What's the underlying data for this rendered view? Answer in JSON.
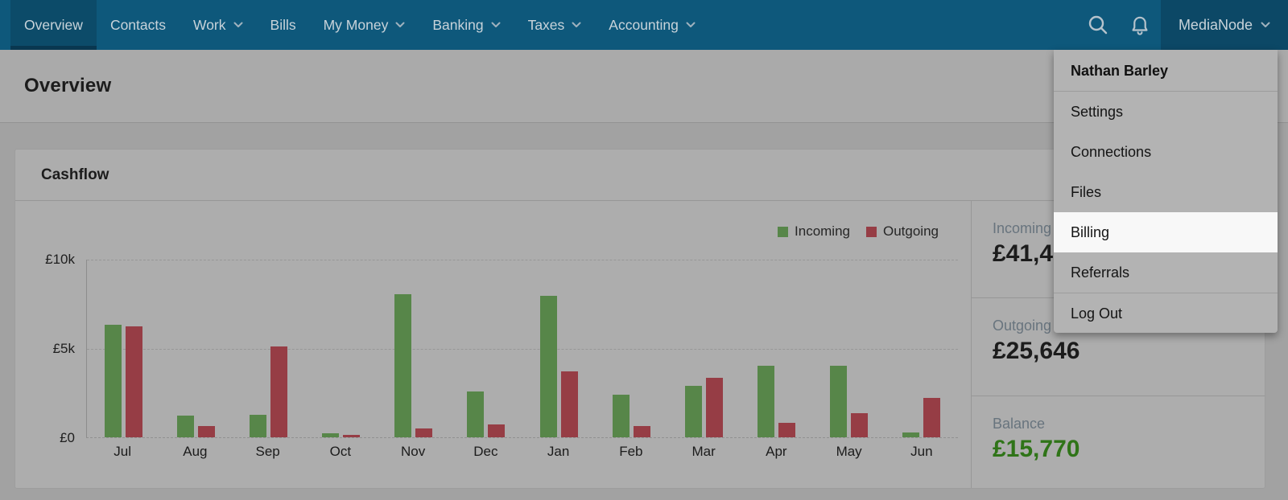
{
  "nav": {
    "items": [
      {
        "label": "Overview",
        "active": true,
        "has_dropdown": false
      },
      {
        "label": "Contacts",
        "active": false,
        "has_dropdown": false
      },
      {
        "label": "Work",
        "active": false,
        "has_dropdown": true
      },
      {
        "label": "Bills",
        "active": false,
        "has_dropdown": false
      },
      {
        "label": "My Money",
        "active": false,
        "has_dropdown": true
      },
      {
        "label": "Banking",
        "active": false,
        "has_dropdown": true
      },
      {
        "label": "Taxes",
        "active": false,
        "has_dropdown": true
      },
      {
        "label": "Accounting",
        "active": false,
        "has_dropdown": true
      }
    ],
    "icons": [
      "search-icon",
      "bell-icon"
    ],
    "account_label": "MediaNode"
  },
  "page": {
    "title": "Overview"
  },
  "card": {
    "title": "Cashflow"
  },
  "summary": {
    "incoming_label": "Incoming",
    "incoming_value": "£41,416",
    "outgoing_label": "Outgoing",
    "outgoing_value": "£25,646",
    "balance_label": "Balance",
    "balance_value": "£15,770"
  },
  "user_menu": {
    "user_name": "Nathan Barley",
    "items": [
      {
        "label": "Settings",
        "highlighted": false,
        "divider_before": false
      },
      {
        "label": "Connections",
        "highlighted": false,
        "divider_before": false
      },
      {
        "label": "Files",
        "highlighted": false,
        "divider_before": false
      },
      {
        "label": "Billing",
        "highlighted": true,
        "divider_before": false
      },
      {
        "label": "Referrals",
        "highlighted": false,
        "divider_before": false
      },
      {
        "label": "Log Out",
        "highlighted": false,
        "divider_before": true
      }
    ]
  },
  "chart_data": {
    "type": "bar",
    "title": "Cashflow",
    "categories": [
      "Jul",
      "Aug",
      "Sep",
      "Oct",
      "Nov",
      "Dec",
      "Jan",
      "Feb",
      "Mar",
      "Apr",
      "May",
      "Jun"
    ],
    "series": [
      {
        "name": "Incoming",
        "color": "#578649",
        "values": [
          6300,
          1200,
          1250,
          220,
          8000,
          2550,
          7950,
          2400,
          2900,
          4000,
          4000,
          270
        ]
      },
      {
        "name": "Outgoing",
        "color": "#963D45",
        "values": [
          6200,
          650,
          5100,
          120,
          500,
          700,
          3700,
          650,
          3350,
          800,
          1350,
          2200
        ]
      }
    ],
    "xlabel": "",
    "ylabel": "",
    "ytick_labels": [
      "£0",
      "£5k",
      "£10k"
    ],
    "ylim": [
      0,
      10000
    ],
    "grid": "dashed-horizontal",
    "legend_position": "top-right",
    "currency": "GBP"
  },
  "colors": {
    "nav_bg": "#0E587B",
    "nav_active": "#0C4B69",
    "accent_green": "#2F7418",
    "bar_incoming": "#578649",
    "bar_outgoing": "#963D45",
    "highlight_row": "#F8F8F8"
  }
}
